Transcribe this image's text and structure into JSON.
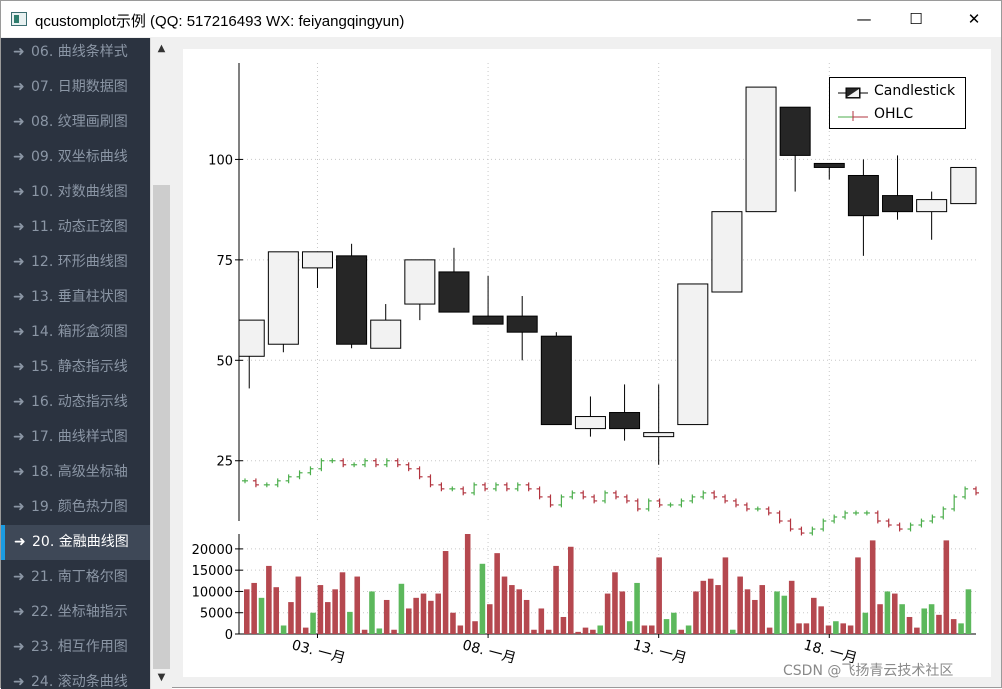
{
  "window": {
    "title": "qcustomplot示例 (QQ: 517216493 WX: feiyangqingyun)",
    "minimize_glyph": "—",
    "maximize_glyph": "☐",
    "close_glyph": "✕"
  },
  "sidebar": {
    "arrow_glyph": "➜",
    "items": [
      {
        "label": "06. 曲线条样式"
      },
      {
        "label": "07. 日期数据图"
      },
      {
        "label": "08. 纹理画刷图"
      },
      {
        "label": "09. 双坐标曲线"
      },
      {
        "label": "10. 对数曲线图"
      },
      {
        "label": "11. 动态正弦图"
      },
      {
        "label": "12. 环形曲线图"
      },
      {
        "label": "13. 垂直柱状图"
      },
      {
        "label": "14. 箱形盒须图"
      },
      {
        "label": "15. 静态指示线"
      },
      {
        "label": "16. 动态指示线"
      },
      {
        "label": "17. 曲线样式图"
      },
      {
        "label": "18. 高级坐标轴"
      },
      {
        "label": "19. 颜色热力图"
      },
      {
        "label": "20. 金融曲线图"
      },
      {
        "label": "21. 南丁格尔图"
      },
      {
        "label": "22. 坐标轴指示"
      },
      {
        "label": "23. 相互作用图"
      },
      {
        "label": "24. 滚动条曲线"
      }
    ],
    "active_index": 14
  },
  "scrollbar": {
    "up_glyph": "▲",
    "down_glyph": "▼"
  },
  "legend": {
    "items": [
      {
        "label": "Candlestick"
      },
      {
        "label": "OHLC"
      }
    ]
  },
  "watermark": "CSDN @飞扬青云技术社区",
  "colors": {
    "sidebar_bg": "#2b3340",
    "active_accent": "#1b9be0",
    "candle_up_fill": "#f2f2f2",
    "candle_down_fill": "#262626",
    "ohlc_up": "#4cae4c",
    "ohlc_down": "#b2343f",
    "volume_up": "#5cb85c",
    "volume_down": "#b5484f"
  },
  "chart_data": [
    {
      "type": "candlestick",
      "yticks": [
        25,
        50,
        75,
        100
      ],
      "ylim": [
        10,
        124
      ],
      "x_day_range": [
        1,
        22.3
      ],
      "xticks": [
        {
          "day": 3,
          "label": "03. 一月"
        },
        {
          "day": 8,
          "label": "08. 一月"
        },
        {
          "day": 13,
          "label": "13. 一月"
        },
        {
          "day": 18,
          "label": "18. 一月"
        }
      ],
      "candles": [
        {
          "day": 1.0,
          "open": 51,
          "high": 60,
          "low": 43,
          "close": 60
        },
        {
          "day": 2.0,
          "open": 54,
          "high": 77,
          "low": 52,
          "close": 77
        },
        {
          "day": 3.0,
          "open": 73,
          "high": 77,
          "low": 68,
          "close": 77
        },
        {
          "day": 4.0,
          "open": 76,
          "high": 79,
          "low": 53,
          "close": 54
        },
        {
          "day": 5.0,
          "open": 53,
          "high": 64,
          "low": 53,
          "close": 60
        },
        {
          "day": 6.0,
          "open": 64,
          "high": 75,
          "low": 60,
          "close": 75
        },
        {
          "day": 7.0,
          "open": 72,
          "high": 78,
          "low": 62,
          "close": 62
        },
        {
          "day": 8.0,
          "open": 61,
          "high": 71,
          "low": 59,
          "close": 59
        },
        {
          "day": 9.0,
          "open": 61,
          "high": 66,
          "low": 50,
          "close": 57
        },
        {
          "day": 10.0,
          "open": 56,
          "high": 57,
          "low": 34,
          "close": 34
        },
        {
          "day": 11.0,
          "open": 33,
          "high": 41,
          "low": 31,
          "close": 36
        },
        {
          "day": 12.0,
          "open": 37,
          "high": 44,
          "low": 30,
          "close": 33
        },
        {
          "day": 13.0,
          "open": 31,
          "high": 44,
          "low": 24,
          "close": 32
        },
        {
          "day": 14.0,
          "open": 34,
          "high": 69,
          "low": 34,
          "close": 69
        },
        {
          "day": 15.0,
          "open": 67,
          "high": 87,
          "low": 67,
          "close": 87
        },
        {
          "day": 16.0,
          "open": 87,
          "high": 118,
          "low": 87,
          "close": 118
        },
        {
          "day": 17.0,
          "open": 113,
          "high": 113,
          "low": 92,
          "close": 101
        },
        {
          "day": 18.0,
          "open": 99,
          "high": 99,
          "low": 95,
          "close": 98
        },
        {
          "day": 19.0,
          "open": 96,
          "high": 100,
          "low": 76,
          "close": 86
        },
        {
          "day": 20.0,
          "open": 91,
          "high": 101,
          "low": 85,
          "close": 87
        },
        {
          "day": 21.0,
          "open": 87,
          "high": 92,
          "low": 80,
          "close": 90
        },
        {
          "day": 22.0,
          "open": 89,
          "high": 98,
          "low": 89,
          "close": 98
        }
      ],
      "ohlc": [
        20,
        19,
        19,
        20,
        21,
        22,
        23,
        25,
        25,
        24,
        24,
        25,
        24,
        25,
        24,
        23,
        21,
        19,
        18,
        18,
        17,
        19,
        18,
        19,
        18,
        19,
        18,
        16,
        14,
        16,
        17,
        16,
        15,
        17,
        16,
        15,
        13,
        15,
        14,
        14,
        15,
        16,
        17,
        16,
        15,
        14,
        13,
        13,
        12,
        10,
        8,
        7,
        8,
        10,
        11,
        12,
        12,
        12,
        10,
        9,
        8,
        9,
        10,
        11,
        13,
        16,
        18,
        17
      ]
    },
    {
      "type": "bar",
      "yticks": [
        0,
        5000,
        10000,
        15000,
        20000
      ],
      "ylim": [
        0,
        23500
      ],
      "volume": [
        {
          "v": 10500,
          "d": -1
        },
        {
          "v": 12000,
          "d": -1
        },
        {
          "v": 8500,
          "d": 1
        },
        {
          "v": 16000,
          "d": -1
        },
        {
          "v": 11000,
          "d": -1
        },
        {
          "v": 2000,
          "d": 1
        },
        {
          "v": 7500,
          "d": -1
        },
        {
          "v": 13500,
          "d": -1
        },
        {
          "v": 1500,
          "d": -1
        },
        {
          "v": 5000,
          "d": 1
        },
        {
          "v": 11500,
          "d": -1
        },
        {
          "v": 7500,
          "d": -1
        },
        {
          "v": 10500,
          "d": -1
        },
        {
          "v": 14500,
          "d": -1
        },
        {
          "v": 5200,
          "d": 1
        },
        {
          "v": 13500,
          "d": -1
        },
        {
          "v": 1000,
          "d": -1
        },
        {
          "v": 10000,
          "d": 1
        },
        {
          "v": 1300,
          "d": 1
        },
        {
          "v": 8000,
          "d": -1
        },
        {
          "v": 1000,
          "d": -1
        },
        {
          "v": 11800,
          "d": 1
        },
        {
          "v": 6000,
          "d": -1
        },
        {
          "v": 8500,
          "d": -1
        },
        {
          "v": 9500,
          "d": -1
        },
        {
          "v": 7800,
          "d": -1
        },
        {
          "v": 9500,
          "d": -1
        },
        {
          "v": 19500,
          "d": -1
        },
        {
          "v": 5000,
          "d": -1
        },
        {
          "v": 2000,
          "d": -1
        },
        {
          "v": 23500,
          "d": -1
        },
        {
          "v": 3000,
          "d": -1
        },
        {
          "v": 16500,
          "d": 1
        },
        {
          "v": 7000,
          "d": -1
        },
        {
          "v": 19000,
          "d": -1
        },
        {
          "v": 13500,
          "d": -1
        },
        {
          "v": 11500,
          "d": -1
        },
        {
          "v": 10500,
          "d": -1
        },
        {
          "v": 8000,
          "d": -1
        },
        {
          "v": 1000,
          "d": -1
        },
        {
          "v": 6000,
          "d": -1
        },
        {
          "v": 1000,
          "d": -1
        },
        {
          "v": 16000,
          "d": -1
        },
        {
          "v": 4000,
          "d": -1
        },
        {
          "v": 20500,
          "d": -1
        },
        {
          "v": 500,
          "d": -1
        },
        {
          "v": 1500,
          "d": -1
        },
        {
          "v": 1000,
          "d": -1
        },
        {
          "v": 2000,
          "d": 1
        },
        {
          "v": 9500,
          "d": -1
        },
        {
          "v": 14500,
          "d": -1
        },
        {
          "v": 10000,
          "d": -1
        },
        {
          "v": 3000,
          "d": 1
        },
        {
          "v": 12000,
          "d": 1
        },
        {
          "v": 2000,
          "d": -1
        },
        {
          "v": 2000,
          "d": -1
        },
        {
          "v": 18000,
          "d": -1
        },
        {
          "v": 3500,
          "d": 1
        },
        {
          "v": 5000,
          "d": 1
        },
        {
          "v": 1000,
          "d": -1
        },
        {
          "v": 2000,
          "d": 1
        },
        {
          "v": 10000,
          "d": -1
        },
        {
          "v": 12500,
          "d": -1
        },
        {
          "v": 13000,
          "d": -1
        },
        {
          "v": 11500,
          "d": -1
        },
        {
          "v": 18000,
          "d": -1
        },
        {
          "v": 1000,
          "d": 1
        },
        {
          "v": 13500,
          "d": -1
        },
        {
          "v": 10500,
          "d": -1
        },
        {
          "v": 8000,
          "d": -1
        },
        {
          "v": 11500,
          "d": -1
        },
        {
          "v": 1500,
          "d": -1
        },
        {
          "v": 10000,
          "d": 1
        },
        {
          "v": 9000,
          "d": 1
        },
        {
          "v": 12500,
          "d": -1
        },
        {
          "v": 2500,
          "d": -1
        },
        {
          "v": 2500,
          "d": -1
        },
        {
          "v": 8500,
          "d": -1
        },
        {
          "v": 6500,
          "d": -1
        },
        {
          "v": 2000,
          "d": -1
        },
        {
          "v": 3000,
          "d": 1
        },
        {
          "v": 2500,
          "d": -1
        },
        {
          "v": 2000,
          "d": -1
        },
        {
          "v": 18000,
          "d": -1
        },
        {
          "v": 5000,
          "d": 1
        },
        {
          "v": 22000,
          "d": -1
        },
        {
          "v": 7000,
          "d": -1
        },
        {
          "v": 10000,
          "d": 1
        },
        {
          "v": 9500,
          "d": -1
        },
        {
          "v": 7000,
          "d": 1
        },
        {
          "v": 4000,
          "d": -1
        },
        {
          "v": 1500,
          "d": -1
        },
        {
          "v": 6000,
          "d": 1
        },
        {
          "v": 7000,
          "d": 1
        },
        {
          "v": 4500,
          "d": -1
        },
        {
          "v": 22000,
          "d": -1
        },
        {
          "v": 3500,
          "d": -1
        },
        {
          "v": 2500,
          "d": 1
        },
        {
          "v": 10500,
          "d": 1
        }
      ]
    }
  ]
}
